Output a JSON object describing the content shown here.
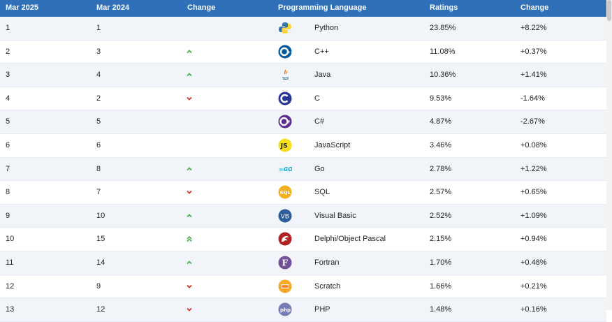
{
  "headers": [
    "Mar 2025",
    "Mar 2024",
    "Change",
    "Programming Language",
    "Ratings",
    "Change"
  ],
  "rows": [
    {
      "rank2025": "1",
      "rank2024": "1",
      "trend": "none",
      "language": "Python",
      "rating": "23.85%",
      "change": "+8.22%",
      "icon": "python-logo-icon",
      "color": "#3776ab"
    },
    {
      "rank2025": "2",
      "rank2024": "3",
      "trend": "up",
      "language": "C++",
      "rating": "11.08%",
      "change": "+0.37%",
      "icon": "cpp-logo-icon",
      "color": "#00599c"
    },
    {
      "rank2025": "3",
      "rank2024": "4",
      "trend": "up",
      "language": "Java",
      "rating": "10.36%",
      "change": "+1.41%",
      "icon": "java-logo-icon",
      "color": "#e76f00"
    },
    {
      "rank2025": "4",
      "rank2024": "2",
      "trend": "down",
      "language": "C",
      "rating": "9.53%",
      "change": "-1.64%",
      "icon": "c-logo-icon",
      "color": "#283593"
    },
    {
      "rank2025": "5",
      "rank2024": "5",
      "trend": "none",
      "language": "C#",
      "rating": "4.87%",
      "change": "-2.67%",
      "icon": "csharp-logo-icon",
      "color": "#5c2d91"
    },
    {
      "rank2025": "6",
      "rank2024": "6",
      "trend": "none",
      "language": "JavaScript",
      "rating": "3.46%",
      "change": "+0.08%",
      "icon": "javascript-logo-icon",
      "color": "#f7df1e"
    },
    {
      "rank2025": "7",
      "rank2024": "8",
      "trend": "up",
      "language": "Go",
      "rating": "2.78%",
      "change": "+1.22%",
      "icon": "go-logo-icon",
      "color": "#00add8"
    },
    {
      "rank2025": "8",
      "rank2024": "7",
      "trend": "down",
      "language": "SQL",
      "rating": "2.57%",
      "change": "+0.65%",
      "icon": "sql-logo-icon",
      "color": "#f2b01e"
    },
    {
      "rank2025": "9",
      "rank2024": "10",
      "trend": "up",
      "language": "Visual Basic",
      "rating": "2.52%",
      "change": "+1.09%",
      "icon": "visual-basic-logo-icon",
      "color": "#2a5c9a"
    },
    {
      "rank2025": "10",
      "rank2024": "15",
      "trend": "double-up",
      "language": "Delphi/Object Pascal",
      "rating": "2.15%",
      "change": "+0.94%",
      "icon": "delphi-logo-icon",
      "color": "#b22222"
    },
    {
      "rank2025": "11",
      "rank2024": "14",
      "trend": "up",
      "language": "Fortran",
      "rating": "1.70%",
      "change": "+0.48%",
      "icon": "fortran-logo-icon",
      "color": "#734f96"
    },
    {
      "rank2025": "12",
      "rank2024": "9",
      "trend": "down",
      "language": "Scratch",
      "rating": "1.66%",
      "change": "+0.21%",
      "icon": "scratch-logo-icon",
      "color": "#f9a825"
    },
    {
      "rank2025": "13",
      "rank2024": "12",
      "trend": "down",
      "language": "PHP",
      "rating": "1.48%",
      "change": "+0.16%",
      "icon": "php-logo-icon",
      "color": "#777bb3"
    }
  ],
  "colors": {
    "header": "#2f70b9",
    "up": "#4caf50",
    "down": "#d9342b",
    "rowAlt": "#f1f5fa"
  }
}
